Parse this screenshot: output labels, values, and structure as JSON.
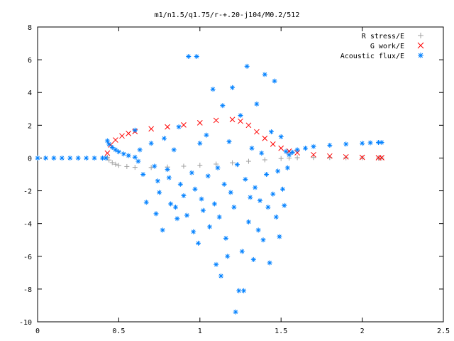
{
  "chart_data": {
    "type": "scatter",
    "title": "m1/n1.5/q1.75/r-+.20-j104/M0.2/512",
    "xlabel": "",
    "ylabel": "",
    "xlim": [
      0,
      2.5
    ],
    "ylim": [
      -10,
      8
    ],
    "x_ticks": [
      0,
      0.5,
      1,
      1.5,
      2,
      2.5
    ],
    "x_tick_labels": [
      "0",
      "0.5",
      "1",
      "1.5",
      "2",
      "2.5"
    ],
    "y_ticks": [
      -10,
      -8,
      -6,
      -4,
      -2,
      0,
      2,
      4,
      6,
      8
    ],
    "y_tick_labels": [
      "-10",
      "-8",
      "-6",
      "-4",
      "-2",
      "0",
      "2",
      "4",
      "6",
      "8"
    ],
    "grid": false,
    "legend_position": "top-right",
    "series": [
      {
        "name": "R stress/E",
        "marker": "plus",
        "color": "#a0a0a0",
        "points": [
          [
            0.43,
            0.05
          ],
          [
            0.44,
            -0.12
          ],
          [
            0.46,
            -0.28
          ],
          [
            0.48,
            -0.38
          ],
          [
            0.5,
            -0.45
          ],
          [
            0.55,
            -0.52
          ],
          [
            0.6,
            -0.57
          ],
          [
            0.7,
            -0.58
          ],
          [
            0.8,
            -0.55
          ],
          [
            0.9,
            -0.5
          ],
          [
            1.0,
            -0.44
          ],
          [
            1.1,
            -0.37
          ],
          [
            1.2,
            -0.29
          ],
          [
            1.3,
            -0.2
          ],
          [
            1.4,
            -0.11
          ],
          [
            1.5,
            -0.03
          ],
          [
            1.55,
            0.0
          ],
          [
            1.6,
            0.02
          ],
          [
            1.7,
            0.03
          ],
          [
            1.8,
            0.03
          ],
          [
            1.9,
            0.02
          ],
          [
            2.0,
            0.01
          ],
          [
            2.1,
            0.0
          ],
          [
            2.12,
            0.0
          ]
        ]
      },
      {
        "name": "G work/E",
        "marker": "cross",
        "color": "#ff0000",
        "points": [
          [
            0.43,
            0.3
          ],
          [
            0.45,
            0.8
          ],
          [
            0.48,
            1.1
          ],
          [
            0.52,
            1.35
          ],
          [
            0.56,
            1.5
          ],
          [
            0.6,
            1.62
          ],
          [
            0.7,
            1.78
          ],
          [
            0.8,
            1.9
          ],
          [
            0.9,
            2.02
          ],
          [
            1.0,
            2.15
          ],
          [
            1.1,
            2.3
          ],
          [
            1.2,
            2.35
          ],
          [
            1.25,
            2.25
          ],
          [
            1.3,
            2.0
          ],
          [
            1.35,
            1.6
          ],
          [
            1.4,
            1.2
          ],
          [
            1.45,
            0.85
          ],
          [
            1.5,
            0.6
          ],
          [
            1.55,
            0.42
          ],
          [
            1.6,
            0.32
          ],
          [
            1.7,
            0.2
          ],
          [
            1.8,
            0.12
          ],
          [
            1.9,
            0.07
          ],
          [
            2.0,
            0.04
          ],
          [
            2.1,
            0.02
          ],
          [
            2.12,
            0.02
          ]
        ]
      },
      {
        "name": "Acoustic flux/E",
        "marker": "star",
        "color": "#0080ff",
        "points": [
          [
            0.0,
            0.0
          ],
          [
            0.05,
            0.0
          ],
          [
            0.1,
            0.0
          ],
          [
            0.15,
            0.0
          ],
          [
            0.2,
            0.0
          ],
          [
            0.25,
            0.0
          ],
          [
            0.3,
            0.0
          ],
          [
            0.35,
            0.0
          ],
          [
            0.4,
            0.0
          ],
          [
            0.42,
            0.0
          ],
          [
            0.43,
            1.05
          ],
          [
            0.44,
            0.85
          ],
          [
            0.46,
            0.65
          ],
          [
            0.48,
            0.5
          ],
          [
            0.5,
            0.38
          ],
          [
            0.53,
            0.25
          ],
          [
            0.56,
            0.15
          ],
          [
            0.6,
            0.05
          ],
          [
            0.6,
            1.7
          ],
          [
            0.62,
            -0.2
          ],
          [
            0.63,
            0.5
          ],
          [
            0.65,
            -1.0
          ],
          [
            0.67,
            -2.7
          ],
          [
            0.7,
            0.9
          ],
          [
            0.72,
            -0.5
          ],
          [
            0.73,
            -3.4
          ],
          [
            0.74,
            -1.4
          ],
          [
            0.75,
            -2.1
          ],
          [
            0.77,
            -4.4
          ],
          [
            0.78,
            1.2
          ],
          [
            0.8,
            -0.7
          ],
          [
            0.81,
            -1.2
          ],
          [
            0.82,
            -2.8
          ],
          [
            0.84,
            0.5
          ],
          [
            0.85,
            -3.0
          ],
          [
            0.86,
            -3.7
          ],
          [
            0.87,
            1.9
          ],
          [
            0.88,
            -1.6
          ],
          [
            0.9,
            -2.3
          ],
          [
            0.92,
            -3.5
          ],
          [
            0.93,
            6.2
          ],
          [
            0.95,
            -0.9
          ],
          [
            0.96,
            -4.5
          ],
          [
            0.97,
            -1.9
          ],
          [
            0.98,
            6.2
          ],
          [
            0.99,
            -5.2
          ],
          [
            1.0,
            0.9
          ],
          [
            1.01,
            -2.5
          ],
          [
            1.02,
            -3.2
          ],
          [
            1.04,
            1.4
          ],
          [
            1.05,
            -1.1
          ],
          [
            1.06,
            -4.2
          ],
          [
            1.08,
            4.2
          ],
          [
            1.09,
            -2.8
          ],
          [
            1.1,
            -6.5
          ],
          [
            1.11,
            -0.6
          ],
          [
            1.12,
            -3.6
          ],
          [
            1.13,
            -7.2
          ],
          [
            1.14,
            3.2
          ],
          [
            1.15,
            -1.6
          ],
          [
            1.16,
            -4.9
          ],
          [
            1.17,
            -6.0
          ],
          [
            1.18,
            1.0
          ],
          [
            1.19,
            -2.1
          ],
          [
            1.2,
            4.3
          ],
          [
            1.21,
            -3.0
          ],
          [
            1.22,
            -9.4
          ],
          [
            1.23,
            -0.4
          ],
          [
            1.24,
            -8.1
          ],
          [
            1.25,
            2.6
          ],
          [
            1.26,
            -5.7
          ],
          [
            1.27,
            -8.1
          ],
          [
            1.28,
            -1.3
          ],
          [
            1.29,
            5.6
          ],
          [
            1.3,
            -3.9
          ],
          [
            1.31,
            -2.4
          ],
          [
            1.32,
            0.6
          ],
          [
            1.33,
            -6.2
          ],
          [
            1.34,
            -1.8
          ],
          [
            1.35,
            3.3
          ],
          [
            1.36,
            -4.4
          ],
          [
            1.37,
            -2.6
          ],
          [
            1.38,
            0.3
          ],
          [
            1.39,
            -5.0
          ],
          [
            1.4,
            5.1
          ],
          [
            1.41,
            -1.0
          ],
          [
            1.42,
            -3.0
          ],
          [
            1.43,
            -6.4
          ],
          [
            1.44,
            1.6
          ],
          [
            1.45,
            -2.2
          ],
          [
            1.46,
            4.7
          ],
          [
            1.47,
            -3.6
          ],
          [
            1.48,
            -0.8
          ],
          [
            1.49,
            -4.8
          ],
          [
            1.5,
            1.3
          ],
          [
            1.51,
            -1.9
          ],
          [
            1.52,
            -2.9
          ],
          [
            1.53,
            0.4
          ],
          [
            1.54,
            -0.6
          ],
          [
            1.55,
            0.2
          ],
          [
            1.57,
            0.35
          ],
          [
            1.6,
            0.5
          ],
          [
            1.65,
            0.6
          ],
          [
            1.7,
            0.7
          ],
          [
            1.8,
            0.78
          ],
          [
            1.9,
            0.85
          ],
          [
            2.0,
            0.9
          ],
          [
            2.05,
            0.93
          ],
          [
            2.1,
            0.95
          ],
          [
            2.12,
            0.95
          ]
        ]
      }
    ]
  }
}
